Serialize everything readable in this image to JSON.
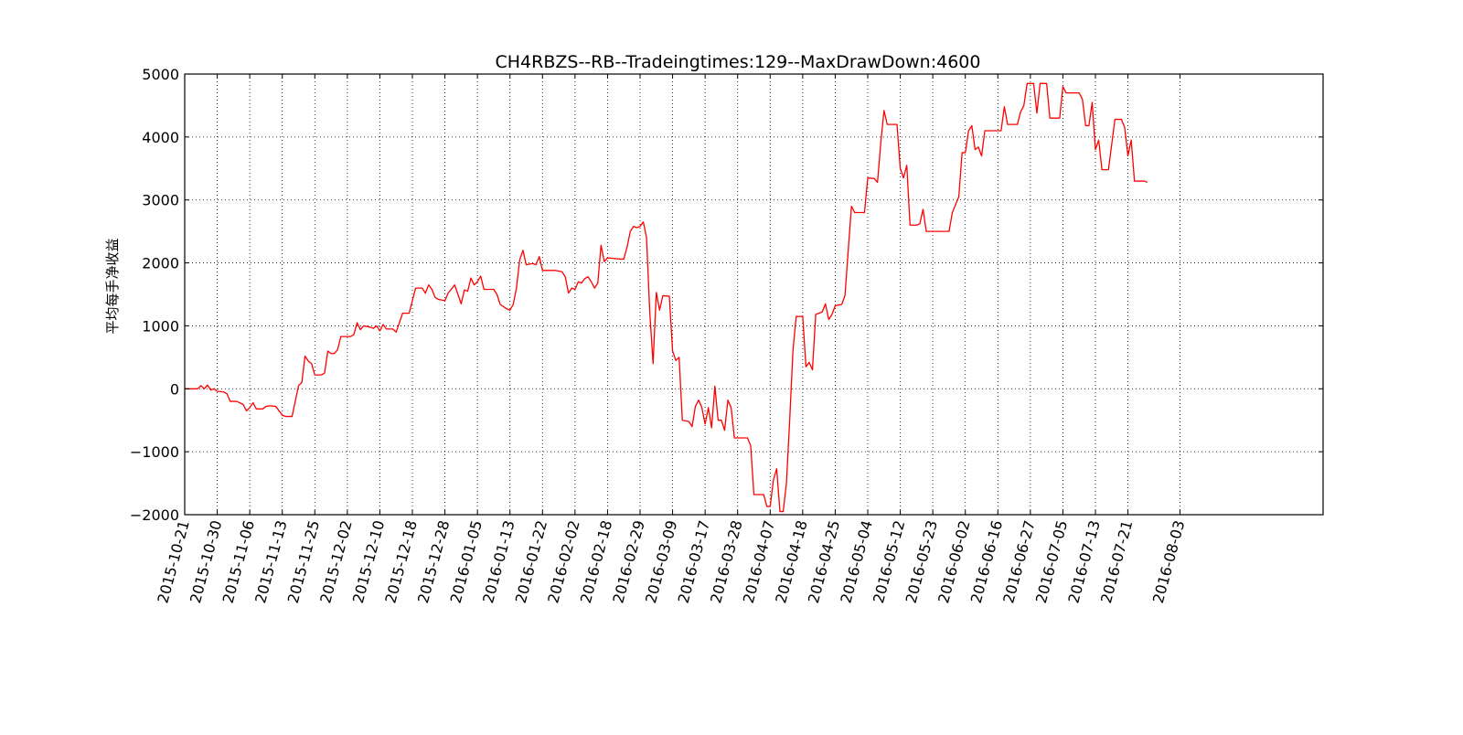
{
  "chart_data": {
    "type": "line",
    "title": "CH4RBZS--RB--Tradeingtimes:129--MaxDrawDown:4600",
    "ylabel": "平均每手净收益",
    "xlabel": "",
    "ylim": [
      -2000,
      5000
    ],
    "yticks": [
      -2000,
      -1000,
      0,
      1000,
      2000,
      3000,
      4000,
      5000
    ],
    "ytick_labels": [
      "−2000",
      "−1000",
      "0",
      "1000",
      "2000",
      "3000",
      "4000",
      "5000"
    ],
    "xlim_index": [
      0,
      350
    ],
    "xticks": [
      {
        "index": 0,
        "label": "2015-10-21"
      },
      {
        "index": 10,
        "label": "2015-10-30"
      },
      {
        "index": 20,
        "label": "2015-11-06"
      },
      {
        "index": 30,
        "label": "2015-11-13"
      },
      {
        "index": 40,
        "label": "2015-11-25"
      },
      {
        "index": 50,
        "label": "2015-12-02"
      },
      {
        "index": 60,
        "label": "2015-12-10"
      },
      {
        "index": 70,
        "label": "2015-12-18"
      },
      {
        "index": 80,
        "label": "2015-12-28"
      },
      {
        "index": 90,
        "label": "2016-01-05"
      },
      {
        "index": 100,
        "label": "2016-01-13"
      },
      {
        "index": 110,
        "label": "2016-01-22"
      },
      {
        "index": 120,
        "label": "2016-02-02"
      },
      {
        "index": 130,
        "label": "2016-02-18"
      },
      {
        "index": 140,
        "label": "2016-02-29"
      },
      {
        "index": 150,
        "label": "2016-03-09"
      },
      {
        "index": 160,
        "label": "2016-03-17"
      },
      {
        "index": 170,
        "label": "2016-03-28"
      },
      {
        "index": 180,
        "label": "2016-04-07"
      },
      {
        "index": 190,
        "label": "2016-04-18"
      },
      {
        "index": 200,
        "label": "2016-04-25"
      },
      {
        "index": 210,
        "label": "2016-05-04"
      },
      {
        "index": 220,
        "label": "2016-05-12"
      },
      {
        "index": 230,
        "label": "2016-05-23"
      },
      {
        "index": 240,
        "label": "2016-06-02"
      },
      {
        "index": 250,
        "label": "2016-06-16"
      },
      {
        "index": 260,
        "label": "2016-06-27"
      },
      {
        "index": 270,
        "label": "2016-07-05"
      },
      {
        "index": 280,
        "label": "2016-07-13"
      },
      {
        "index": 290,
        "label": "2016-07-21"
      },
      {
        "index": 306,
        "label": "2016-08-03"
      }
    ],
    "grid": true,
    "series": [
      {
        "color": "#ff0000",
        "points": [
          [
            0,
            0
          ],
          [
            4,
            0
          ],
          [
            5,
            50
          ],
          [
            6,
            0
          ],
          [
            7,
            60
          ],
          [
            8,
            -20
          ],
          [
            9,
            0
          ],
          [
            10,
            -40
          ],
          [
            12,
            -50
          ],
          [
            13,
            -80
          ],
          [
            14,
            -200
          ],
          [
            16,
            -200
          ],
          [
            18,
            -250
          ],
          [
            19,
            -350
          ],
          [
            20,
            -300
          ],
          [
            21,
            -220
          ],
          [
            22,
            -320
          ],
          [
            24,
            -320
          ],
          [
            25,
            -280
          ],
          [
            26,
            -270
          ],
          [
            28,
            -280
          ],
          [
            30,
            -420
          ],
          [
            31,
            -440
          ],
          [
            33,
            -440
          ],
          [
            35,
            50
          ],
          [
            36,
            100
          ],
          [
            37,
            520
          ],
          [
            38,
            440
          ],
          [
            39,
            400
          ],
          [
            40,
            220
          ],
          [
            42,
            220
          ],
          [
            43,
            250
          ],
          [
            44,
            600
          ],
          [
            45,
            560
          ],
          [
            46,
            560
          ],
          [
            47,
            620
          ],
          [
            48,
            830
          ],
          [
            49,
            830
          ],
          [
            51,
            830
          ],
          [
            52,
            860
          ],
          [
            53,
            1050
          ],
          [
            54,
            940
          ],
          [
            55,
            1000
          ],
          [
            57,
            980
          ],
          [
            58,
            960
          ],
          [
            59,
            1000
          ],
          [
            60,
            920
          ],
          [
            61,
            1020
          ],
          [
            62,
            950
          ],
          [
            64,
            950
          ],
          [
            65,
            900
          ],
          [
            67,
            1200
          ],
          [
            69,
            1200
          ],
          [
            71,
            1600
          ],
          [
            73,
            1600
          ],
          [
            74,
            1520
          ],
          [
            75,
            1650
          ],
          [
            76,
            1580
          ],
          [
            77,
            1450
          ],
          [
            78,
            1420
          ],
          [
            80,
            1400
          ],
          [
            81,
            1520
          ],
          [
            83,
            1650
          ],
          [
            84,
            1500
          ],
          [
            85,
            1350
          ],
          [
            86,
            1570
          ],
          [
            87,
            1550
          ],
          [
            88,
            1760
          ],
          [
            89,
            1650
          ],
          [
            90,
            1700
          ],
          [
            91,
            1790
          ],
          [
            92,
            1580
          ],
          [
            95,
            1580
          ],
          [
            96,
            1500
          ],
          [
            97,
            1340
          ],
          [
            99,
            1270
          ],
          [
            100,
            1250
          ],
          [
            101,
            1340
          ],
          [
            102,
            1600
          ],
          [
            103,
            2050
          ],
          [
            104,
            2200
          ],
          [
            105,
            1970
          ],
          [
            107,
            1990
          ],
          [
            108,
            1970
          ],
          [
            109,
            2100
          ],
          [
            110,
            1880
          ],
          [
            114,
            1880
          ],
          [
            116,
            1860
          ],
          [
            117,
            1780
          ],
          [
            118,
            1520
          ],
          [
            119,
            1600
          ],
          [
            120,
            1580
          ],
          [
            121,
            1700
          ],
          [
            122,
            1680
          ],
          [
            123,
            1750
          ],
          [
            124,
            1780
          ],
          [
            125,
            1700
          ],
          [
            126,
            1600
          ],
          [
            127,
            1680
          ],
          [
            128,
            2280
          ],
          [
            129,
            2020
          ],
          [
            130,
            2080
          ],
          [
            132,
            2070
          ],
          [
            134,
            2060
          ],
          [
            135,
            2060
          ],
          [
            136,
            2250
          ],
          [
            137,
            2500
          ],
          [
            138,
            2580
          ],
          [
            139,
            2560
          ],
          [
            140,
            2580
          ],
          [
            141,
            2650
          ],
          [
            142,
            2400
          ],
          [
            143,
            1200
          ],
          [
            144,
            400
          ],
          [
            145,
            1530
          ],
          [
            146,
            1250
          ],
          [
            147,
            1480
          ],
          [
            149,
            1470
          ],
          [
            150,
            600
          ],
          [
            151,
            450
          ],
          [
            152,
            500
          ],
          [
            153,
            -500
          ],
          [
            155,
            -520
          ],
          [
            156,
            -600
          ],
          [
            157,
            -280
          ],
          [
            158,
            -180
          ],
          [
            159,
            -300
          ],
          [
            160,
            -560
          ],
          [
            161,
            -300
          ],
          [
            162,
            -620
          ],
          [
            163,
            40
          ],
          [
            164,
            -500
          ],
          [
            165,
            -500
          ],
          [
            166,
            -660
          ],
          [
            167,
            -180
          ],
          [
            168,
            -300
          ],
          [
            169,
            -780
          ],
          [
            173,
            -780
          ],
          [
            174,
            -900
          ],
          [
            175,
            -1680
          ],
          [
            178,
            -1680
          ],
          [
            179,
            -1870
          ],
          [
            180,
            -1870
          ],
          [
            181,
            -1450
          ],
          [
            182,
            -1270
          ],
          [
            183,
            -1950
          ],
          [
            184,
            -1950
          ],
          [
            185,
            -1500
          ],
          [
            186,
            -500
          ],
          [
            187,
            600
          ],
          [
            188,
            1150
          ],
          [
            190,
            1150
          ],
          [
            191,
            350
          ],
          [
            192,
            420
          ],
          [
            193,
            300
          ],
          [
            194,
            1180
          ],
          [
            196,
            1220
          ],
          [
            197,
            1350
          ],
          [
            198,
            1100
          ],
          [
            199,
            1180
          ],
          [
            200,
            1320
          ],
          [
            202,
            1340
          ],
          [
            203,
            1480
          ],
          [
            204,
            2200
          ],
          [
            205,
            2900
          ],
          [
            206,
            2800
          ],
          [
            208,
            2800
          ],
          [
            209,
            2800
          ],
          [
            210,
            3350
          ],
          [
            212,
            3340
          ],
          [
            213,
            3280
          ],
          [
            214,
            3900
          ],
          [
            215,
            4420
          ],
          [
            216,
            4200
          ],
          [
            218,
            4200
          ],
          [
            219,
            4200
          ],
          [
            220,
            3500
          ],
          [
            221,
            3350
          ],
          [
            222,
            3550
          ],
          [
            223,
            2600
          ],
          [
            225,
            2600
          ],
          [
            226,
            2620
          ],
          [
            227,
            2850
          ],
          [
            228,
            2500
          ],
          [
            233,
            2500
          ],
          [
            235,
            2500
          ],
          [
            236,
            2800
          ],
          [
            238,
            3050
          ],
          [
            239,
            3750
          ],
          [
            240,
            3750
          ],
          [
            241,
            4100
          ],
          [
            242,
            4180
          ],
          [
            243,
            3800
          ],
          [
            244,
            3840
          ],
          [
            245,
            3700
          ],
          [
            246,
            4100
          ],
          [
            251,
            4100
          ],
          [
            252,
            4480
          ],
          [
            253,
            4200
          ],
          [
            256,
            4200
          ],
          [
            257,
            4400
          ],
          [
            258,
            4500
          ],
          [
            259,
            4850
          ],
          [
            261,
            4850
          ],
          [
            262,
            4380
          ],
          [
            263,
            4850
          ],
          [
            265,
            4850
          ],
          [
            266,
            4300
          ],
          [
            269,
            4300
          ],
          [
            270,
            4800
          ],
          [
            271,
            4700
          ],
          [
            275,
            4700
          ],
          [
            276,
            4600
          ],
          [
            277,
            4180
          ],
          [
            278,
            4180
          ],
          [
            279,
            4550
          ],
          [
            280,
            3800
          ],
          [
            281,
            3950
          ],
          [
            282,
            3480
          ],
          [
            284,
            3480
          ],
          [
            286,
            4280
          ],
          [
            288,
            4280
          ],
          [
            289,
            4150
          ],
          [
            290,
            3700
          ],
          [
            291,
            3950
          ],
          [
            292,
            3300
          ],
          [
            295,
            3300
          ],
          [
            296,
            3280
          ]
        ]
      }
    ]
  }
}
